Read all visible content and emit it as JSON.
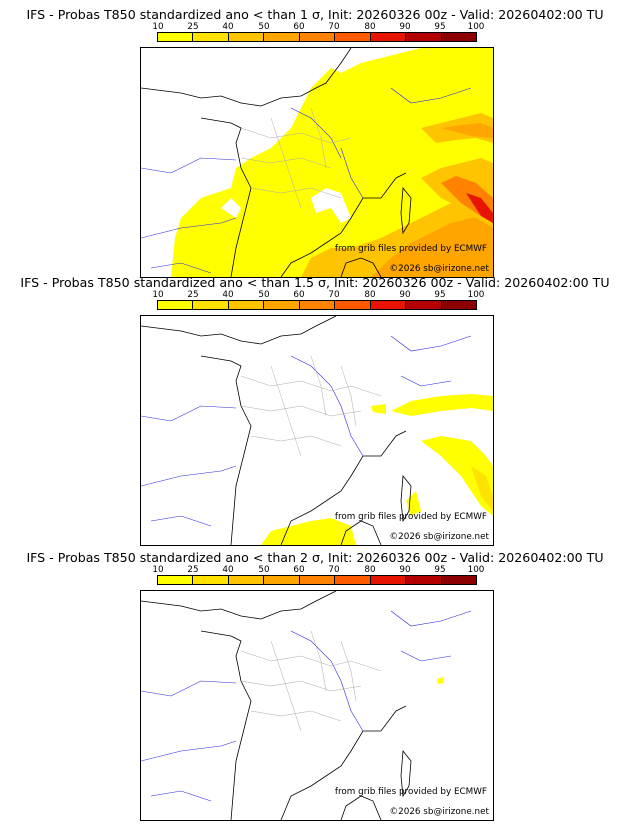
{
  "panels": [
    {
      "title": "IFS - Probas T850  standardized ano < than 1 σ, Init: 20260326 00z - Valid: 20260402:00 TU",
      "threshold_sigma": 1,
      "credit_source": "from grib files provided by ECMWF",
      "credit_copyright": "©2026 sb@irizone.net"
    },
    {
      "title": "IFS - Probas T850  standardized ano < than 1.5 σ, Init: 20260326 00z - Valid: 20260402:00 TU",
      "threshold_sigma": 1.5,
      "credit_source": "from grib files provided by ECMWF",
      "credit_copyright": "©2026 sb@irizone.net"
    },
    {
      "title": "IFS - Probas T850  standardized ano < than 2 σ, Init: 20260326 00z - Valid: 20260402:00 TU",
      "threshold_sigma": 2,
      "credit_source": "from grib files provided by ECMWF",
      "credit_copyright": "©2026 sb@irizone.net"
    }
  ],
  "legend": {
    "labels": [
      "10",
      "25",
      "40",
      "50",
      "60",
      "70",
      "80",
      "90",
      "95",
      "100"
    ],
    "colors": [
      "#ffff00",
      "#ffe200",
      "#ffc400",
      "#ffa500",
      "#ff8200",
      "#ff5a00",
      "#e61400",
      "#b40000",
      "#8c0000",
      "#5a0000"
    ]
  },
  "map_colors": {
    "coast": "#000000",
    "rivers": "#2a2ae0",
    "regions": "#aaaaaa",
    "land_base": "#ffffff"
  }
}
